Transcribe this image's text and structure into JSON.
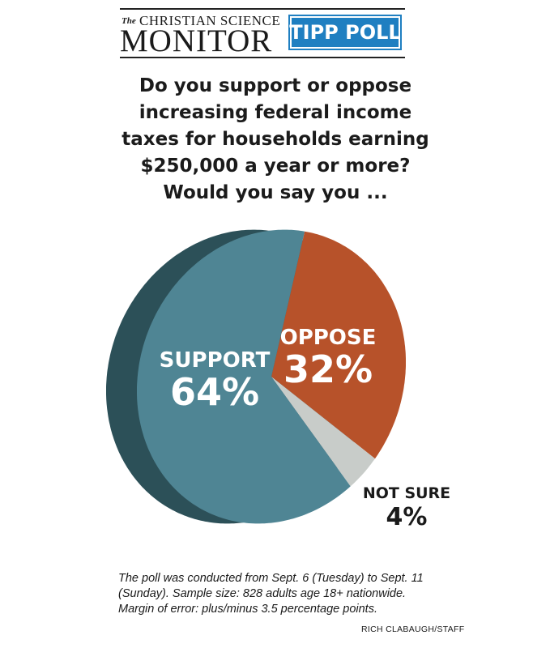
{
  "header": {
    "publication_the": "The",
    "publication_line1": "CHRISTIAN SCIENCE",
    "publication_line2": "MONITOR",
    "badge": "TIPP POLL"
  },
  "question_lines": [
    "Do you support or oppose",
    "increasing federal income",
    "taxes for households earning",
    "$250,000 a year or more?",
    "Would you say you ..."
  ],
  "colors": {
    "support": "#4f8594",
    "support_side": "#2c5058",
    "oppose": "#b7522a",
    "oppose_side": "#8a3c1e",
    "not_sure": "#c8ccc9",
    "badge": "#1f7fc1"
  },
  "chart_data": {
    "type": "pie",
    "slices": [
      {
        "label": "SUPPORT",
        "value": 64,
        "display": "64%"
      },
      {
        "label": "OPPOSE",
        "value": 32,
        "display": "32%"
      },
      {
        "label": "NOT SURE",
        "value": 4,
        "display": "4%"
      }
    ]
  },
  "footnote_lines": [
    "The poll was conducted from Sept. 6 (Tuesday) to Sept. 11",
    "(Sunday). Sample size: 828 adults age 18+ nationwide.",
    "Margin of error: plus/minus 3.5 percentage points."
  ],
  "credit": "RICH CLABAUGH/STAFF"
}
